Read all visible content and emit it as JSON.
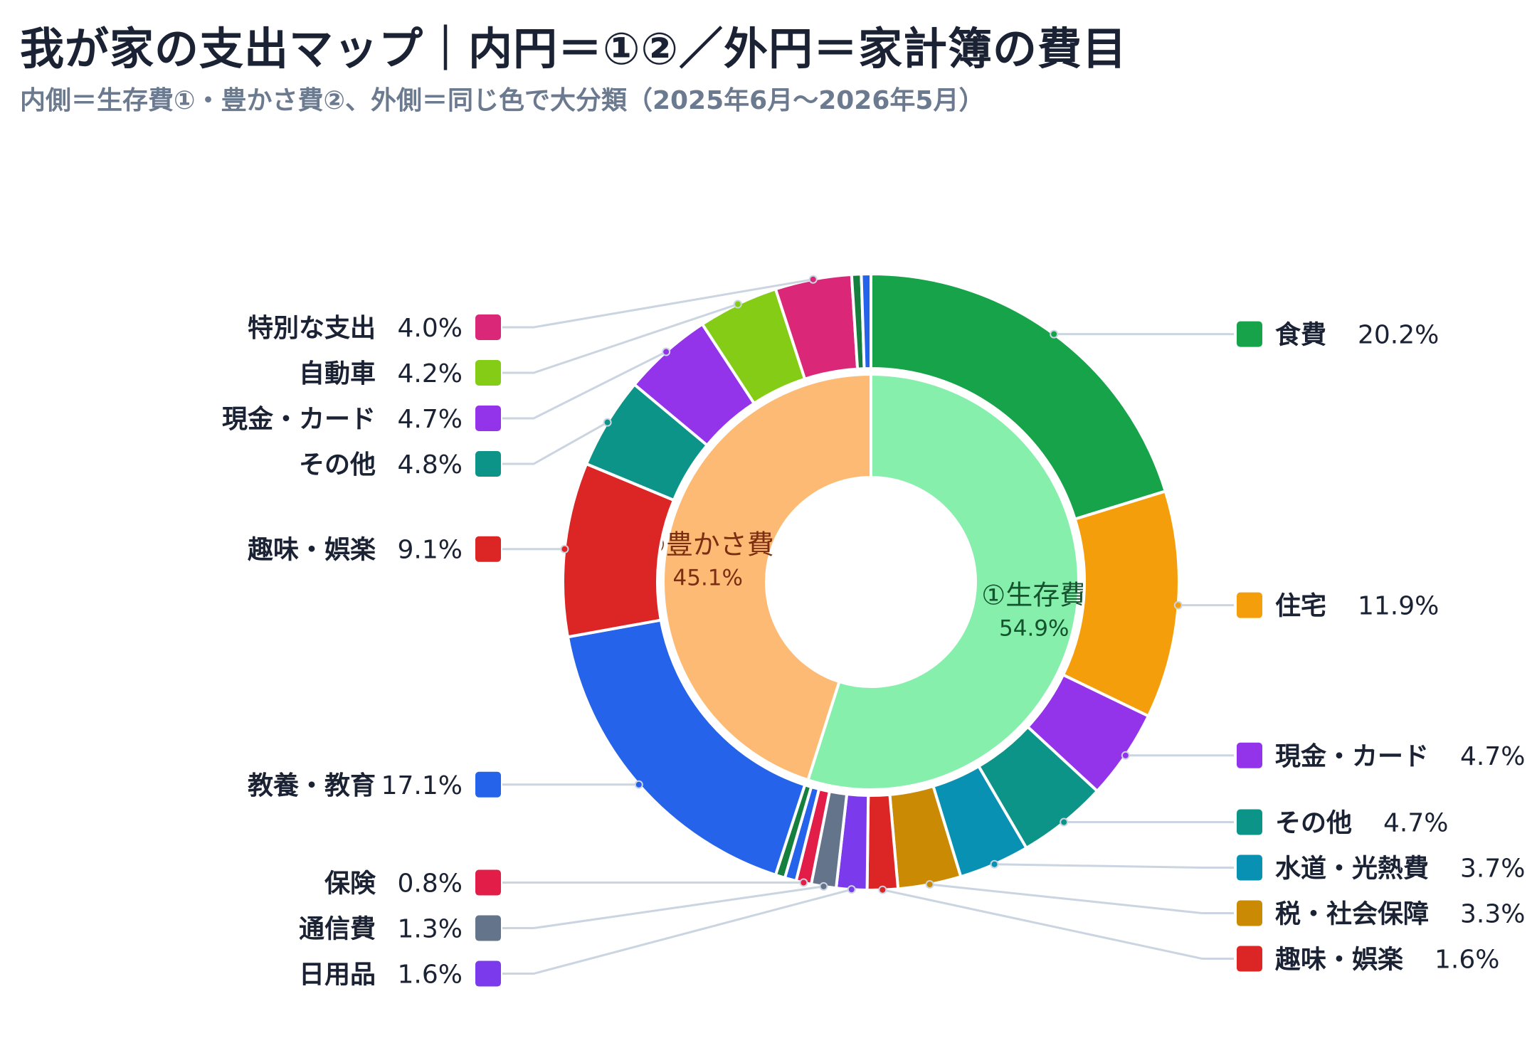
{
  "title": "我が家の支出マップ｜内円＝①②／外円＝家計簿の費目",
  "subtitle": "内側＝生存費①・豊かさ費②、外側＝同じ色で大分類（2025年6月〜2026年5月）",
  "chart_data": {
    "type": "pie",
    "style": "nested-donut",
    "inner_ring": [
      {
        "name": "①生存費",
        "value": 54.9,
        "value_label": "54.9%",
        "color": "#86efac",
        "text_color": "#14532d"
      },
      {
        "name": "②豊かさ費",
        "value": 45.1,
        "value_label": "45.1%",
        "color": "#fdba74",
        "text_color": "#7c2d12"
      }
    ],
    "outer_ring": [
      {
        "name": "食費",
        "value": 20.2,
        "value_label": "20.2%",
        "color": "#16a34a",
        "group": "①生存費",
        "legend_side": "right"
      },
      {
        "name": "住宅",
        "value": 11.9,
        "value_label": "11.9%",
        "color": "#f59e0b",
        "group": "①生存費",
        "legend_side": "right"
      },
      {
        "name": "現金・カード",
        "value": 4.7,
        "value_label": "4.7%",
        "color": "#9333ea",
        "group": "①生存費",
        "legend_side": "right"
      },
      {
        "name": "その他",
        "value": 4.7,
        "value_label": "4.7%",
        "color": "#0d9488",
        "group": "①生存費",
        "legend_side": "right"
      },
      {
        "name": "水道・光熱費",
        "value": 3.7,
        "value_label": "3.7%",
        "color": "#0891b2",
        "group": "①生存費",
        "legend_side": "right"
      },
      {
        "name": "税・社会保障",
        "value": 3.3,
        "value_label": "3.3%",
        "color": "#ca8a04",
        "group": "①生存費",
        "legend_side": "right"
      },
      {
        "name": "趣味・娯楽",
        "value": 1.6,
        "value_label": "1.6%",
        "color": "#dc2626",
        "group": "①生存費",
        "legend_side": "right"
      },
      {
        "name": "日用品",
        "value": 1.6,
        "value_label": "1.6%",
        "color": "#7c3aed",
        "group": "①生存費",
        "legend_side": "left"
      },
      {
        "name": "通信費",
        "value": 1.3,
        "value_label": "1.3%",
        "color": "#64748b",
        "group": "①生存費",
        "legend_side": "left"
      },
      {
        "name": "保険",
        "value": 0.8,
        "value_label": "0.8%",
        "color": "#e11d48",
        "group": "①生存費",
        "legend_side": "left"
      },
      {
        "name": "",
        "value": 0.6,
        "color": "#2563eb",
        "group": "①生存費"
      },
      {
        "name": "",
        "value": 0.5,
        "color": "#15803d",
        "group": "①生存費"
      },
      {
        "name": "教養・教育",
        "value": 17.1,
        "value_label": "17.1%",
        "color": "#2563eb",
        "group": "②豊かさ費",
        "legend_side": "left"
      },
      {
        "name": "趣味・娯楽",
        "value": 9.1,
        "value_label": "9.1%",
        "color": "#dc2626",
        "group": "②豊かさ費",
        "legend_side": "left"
      },
      {
        "name": "その他",
        "value": 4.8,
        "value_label": "4.8%",
        "color": "#0d9488",
        "group": "②豊かさ費",
        "legend_side": "left"
      },
      {
        "name": "現金・カード",
        "value": 4.7,
        "value_label": "4.7%",
        "color": "#9333ea",
        "group": "②豊かさ費",
        "legend_side": "left"
      },
      {
        "name": "自動車",
        "value": 4.2,
        "value_label": "4.2%",
        "color": "#84cc16",
        "group": "②豊かさ費",
        "legend_side": "left"
      },
      {
        "name": "特別な支出",
        "value": 4.0,
        "value_label": "4.0%",
        "color": "#db2777",
        "group": "②豊かさ費",
        "legend_side": "left"
      },
      {
        "name": "",
        "value": 0.5,
        "color": "#15803d",
        "group": "②豊かさ費"
      },
      {
        "name": "",
        "value": 0.5,
        "color": "#2563eb",
        "group": "②豊かさ費"
      }
    ],
    "start_angle": "12 o'clock",
    "direction": "clockwise",
    "legend": "labels with leader lines on both sides"
  }
}
